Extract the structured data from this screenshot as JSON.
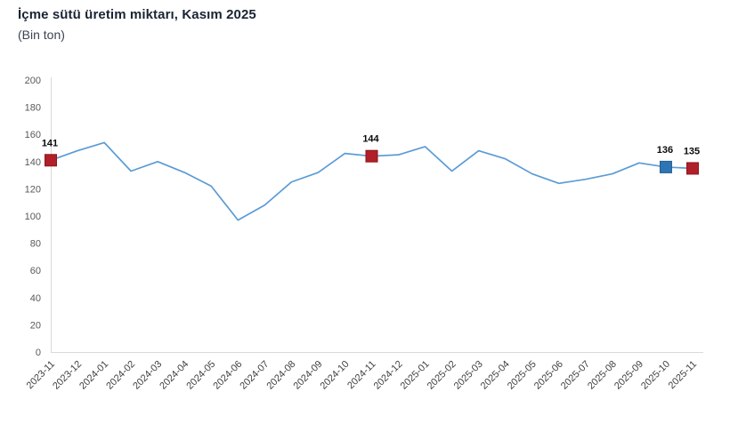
{
  "page": {
    "title": "İçme sütü üretim miktarı, Kasım 2025",
    "subtitle": "(Bin ton)"
  },
  "chart_data": {
    "type": "line",
    "title": "İçme sütü üretim miktarı, Kasım 2025",
    "subtitle": "(Bin ton)",
    "unit": "Bin ton",
    "x": [
      "2023-11",
      "2023-12",
      "2024-01",
      "2024-02",
      "2024-03",
      "2024-04",
      "2024-05",
      "2024-06",
      "2024-07",
      "2024-08",
      "2024-09",
      "2024-10",
      "2024-11",
      "2024-12",
      "2025-01",
      "2025-02",
      "2025-03",
      "2025-04",
      "2025-05",
      "2025-06",
      "2025-07",
      "2025-08",
      "2025-09",
      "2025-10",
      "2025-11"
    ],
    "values": [
      141,
      148,
      154,
      133,
      140,
      132,
      122,
      97,
      108,
      125,
      132,
      146,
      144,
      145,
      151,
      133,
      148,
      142,
      131,
      124,
      127,
      131,
      139,
      136,
      135
    ],
    "ylim": [
      0,
      200
    ],
    "ytick_step": 20,
    "yticks": [
      0,
      20,
      40,
      60,
      80,
      100,
      120,
      140,
      160,
      180,
      200
    ],
    "grid": false,
    "legend": "none",
    "line_color": "#5b9bd5",
    "axis_color": "#d9d9d9",
    "ytick_color": "#595959",
    "xtick_color": "#3f3f3f",
    "value_label_color": "#0b0b0b",
    "marker_red": "#b11f28",
    "marker_blue": "#2e75b6",
    "highlighted_points": [
      {
        "x": "2023-11",
        "index": 0,
        "value": 141,
        "label": "141",
        "color": "#b11f28",
        "stroke": "#8c161d"
      },
      {
        "x": "2024-11",
        "index": 12,
        "value": 144,
        "label": "144",
        "color": "#b11f28",
        "stroke": "#8c161d"
      },
      {
        "x": "2025-10",
        "index": 23,
        "value": 136,
        "label": "136",
        "color": "#2e75b6",
        "stroke": "#255e91"
      },
      {
        "x": "2025-11",
        "index": 24,
        "value": 135,
        "label": "135",
        "color": "#b11f28",
        "stroke": "#8c161d"
      }
    ]
  }
}
